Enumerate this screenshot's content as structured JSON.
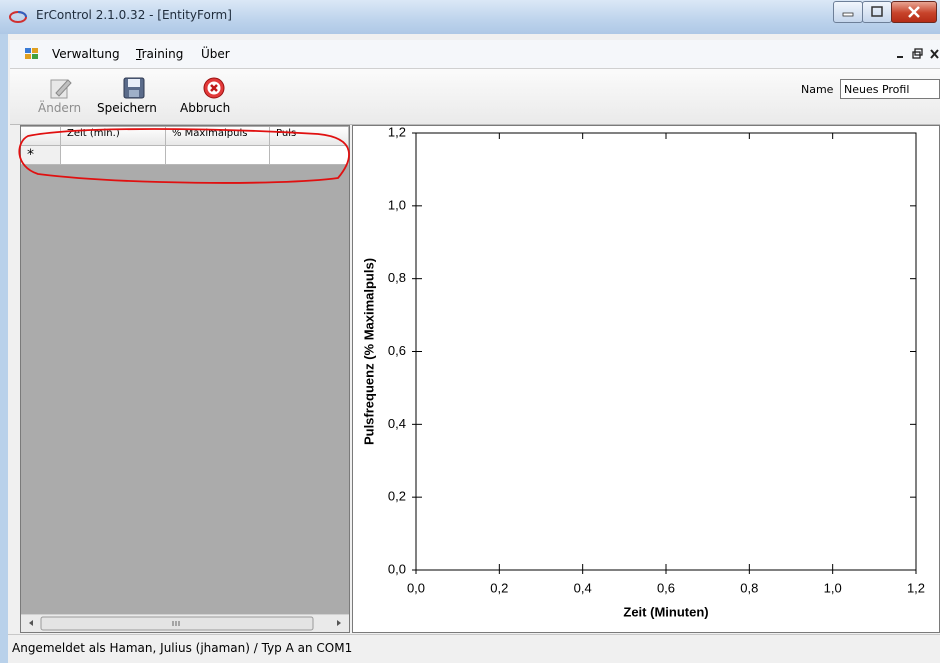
{
  "window": {
    "title": "ErControl 2.1.0.32 - [EntityForm]"
  },
  "menu": [
    "Verwaltung",
    "Training",
    "Über"
  ],
  "toolbar": {
    "buttons": [
      "Ändern",
      "Speichern",
      "Abbruch"
    ],
    "name_label": "Name",
    "name_value": "Neues Profil"
  },
  "grid": {
    "columns": [
      "Zeit (min.)",
      "% Maximalpuls",
      "Puls"
    ],
    "new_row_marker": "*"
  },
  "chart_data": {
    "type": "line",
    "x_label": "Zeit (Minuten)",
    "y_label": "Pulsfrequenz (% Maximalpuls)",
    "xlim": [
      0,
      1.2
    ],
    "ylim": [
      0,
      1.2
    ],
    "xticks": [
      {
        "value": 0,
        "label": "0,0"
      },
      {
        "value": 0.2,
        "label": "0,2"
      },
      {
        "value": 0.4,
        "label": "0,4"
      },
      {
        "value": 0.6,
        "label": "0,6"
      },
      {
        "value": 0.8,
        "label": "0,8"
      },
      {
        "value": 1.0,
        "label": "1,0"
      },
      {
        "value": 1.2,
        "label": "1,2"
      }
    ],
    "yticks": [
      {
        "value": 0,
        "label": "0,0"
      },
      {
        "value": 0.2,
        "label": "0,2"
      },
      {
        "value": 0.4,
        "label": "0,4"
      },
      {
        "value": 0.6,
        "label": "0,6"
      },
      {
        "value": 0.8,
        "label": "0,8"
      },
      {
        "value": 1.0,
        "label": "1,0"
      },
      {
        "value": 1.2,
        "label": "1,2"
      }
    ]
  },
  "status": "Angemeldet als Haman, Julius (jhaman) / Typ A an COM1"
}
